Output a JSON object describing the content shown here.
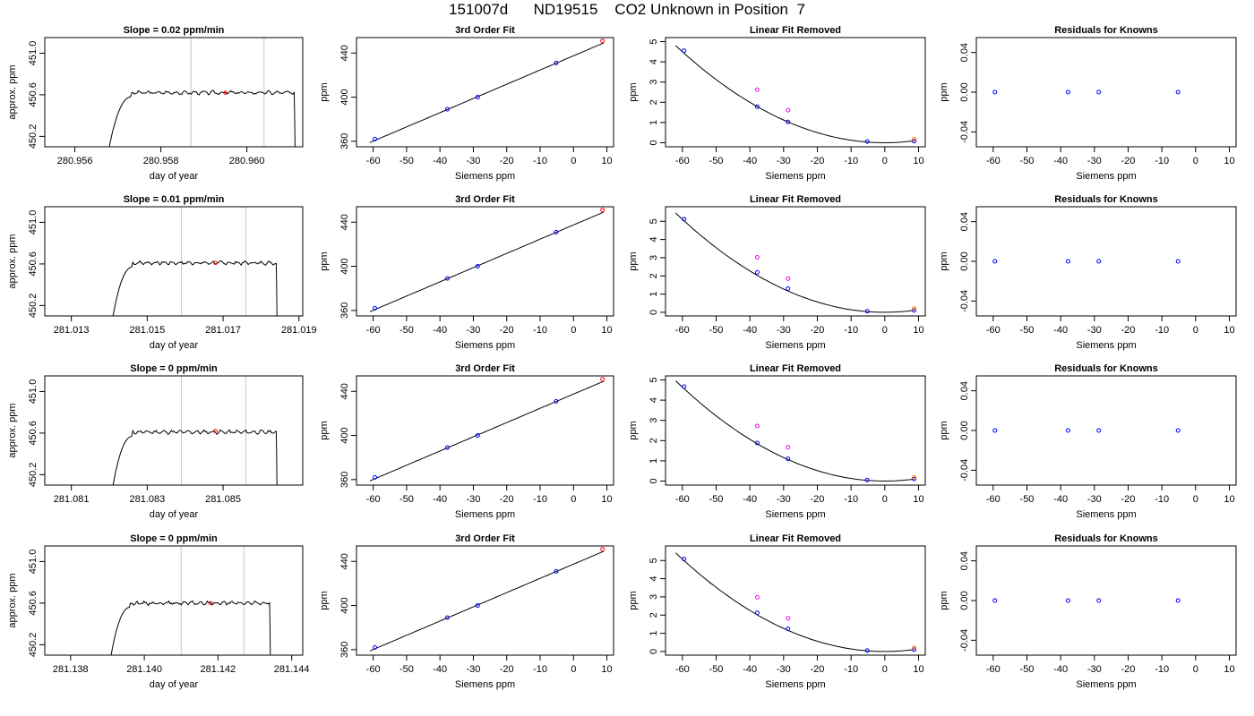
{
  "page": {
    "title": "151007d      ND19515    CO2 Unknown in Position  7"
  },
  "chart_data": [
    {
      "type": "line",
      "title": "Slope =  0.02  ppm/min",
      "xlabel": "day of year",
      "ylabel": "approx. ppm",
      "xlim": [
        280.9553,
        280.9613
      ],
      "ylim": [
        450.1,
        451.15
      ],
      "xticks": [
        280.956,
        280.958,
        280.96
      ],
      "xticklabels": [
        "280.956",
        "280.958",
        "280.960"
      ],
      "yticks": [
        450.2,
        450.6,
        451.0
      ],
      "yticklabels": [
        "450.2",
        "450.6",
        "451.0"
      ],
      "vlines": [
        280.9587,
        280.9604
      ],
      "curve": {
        "start": 280.9568,
        "end": 280.9611,
        "level": 450.62,
        "bottom": 450.1
      },
      "highlight_point": {
        "x": 280.9595,
        "y": 450.62,
        "color": "#ff0000"
      }
    },
    {
      "type": "scatter",
      "title": "3rd Order Fit",
      "xlabel": "Siemens ppm",
      "ylabel": "ppm",
      "xlim": [
        -65,
        12
      ],
      "ylim": [
        355,
        454
      ],
      "xticks": [
        -60,
        -50,
        -40,
        -30,
        -20,
        -10,
        0,
        10
      ],
      "xticklabels": [
        "-60",
        "-50",
        "-40",
        "-30",
        "-20",
        "-10",
        "0",
        "10"
      ],
      "yticks": [
        360,
        400,
        440
      ],
      "yticklabels": [
        "360",
        "400",
        "440"
      ],
      "points": [
        {
          "x": -59.5,
          "y": 362,
          "color": "#0000ff"
        },
        {
          "x": -37.8,
          "y": 389,
          "color": "#0000ff"
        },
        {
          "x": -28.7,
          "y": 400,
          "color": "#0000ff"
        },
        {
          "x": -5.2,
          "y": 431,
          "color": "#0000ff"
        },
        {
          "x": 8.7,
          "y": 451,
          "color": "#ff0000"
        }
      ],
      "fit": {
        "kind": "linear",
        "a": 437.5,
        "b": 1.29,
        "xrange": [
          -61,
          9
        ]
      }
    },
    {
      "type": "scatter",
      "title": "Linear Fit Removed",
      "xlabel": "Siemens ppm",
      "ylabel": "ppm",
      "xlim": [
        -65,
        12
      ],
      "ylim": [
        -0.2,
        5.2
      ],
      "xticks": [
        -60,
        -50,
        -40,
        -30,
        -20,
        -10,
        0,
        10
      ],
      "xticklabels": [
        "-60",
        "-50",
        "-40",
        "-30",
        "-20",
        "-10",
        "0",
        "10"
      ],
      "yticks": [
        0,
        1,
        2,
        3,
        4,
        5
      ],
      "yticklabels": [
        "0",
        "1",
        "2",
        "3",
        "4",
        "5"
      ],
      "points": [
        {
          "x": -59.5,
          "y": 4.55,
          "color": "#0000ff"
        },
        {
          "x": -37.8,
          "y": 1.78,
          "color": "#0000ff"
        },
        {
          "x": -28.7,
          "y": 1.03,
          "color": "#0000ff"
        },
        {
          "x": -5.2,
          "y": 0.06,
          "color": "#0000ff"
        },
        {
          "x": 8.7,
          "y": 0.08,
          "color": "#0000ff"
        },
        {
          "x": -37.8,
          "y": 2.62,
          "color": "#ff00ff"
        },
        {
          "x": -28.7,
          "y": 1.61,
          "color": "#ff00ff"
        },
        {
          "x": 8.7,
          "y": 0.18,
          "color": "#ff8000"
        }
      ],
      "fit": {
        "kind": "quadratic",
        "a": 0.00125,
        "b": 0.0,
        "c": 0.0,
        "xrange": [
          -62,
          9
        ]
      }
    },
    {
      "type": "scatter",
      "title": "Residuals for Knowns",
      "xlabel": "Siemens ppm",
      "ylabel": "ppm",
      "xlim": [
        -65,
        12
      ],
      "ylim": [
        -0.055,
        0.055
      ],
      "xticks": [
        -60,
        -50,
        -40,
        -30,
        -20,
        -10,
        0,
        10
      ],
      "xticklabels": [
        "-60",
        "-50",
        "-40",
        "-30",
        "-20",
        "-10",
        "0",
        "10"
      ],
      "yticks": [
        -0.04,
        0,
        0.04
      ],
      "yticklabels": [
        "-0.04",
        "0.00",
        "0.04"
      ],
      "points": [
        {
          "x": -59.5,
          "y": 0,
          "color": "#0000ff"
        },
        {
          "x": -37.8,
          "y": 0,
          "color": "#0000ff"
        },
        {
          "x": -28.7,
          "y": 0,
          "color": "#0000ff"
        },
        {
          "x": -5.2,
          "y": 0,
          "color": "#0000ff"
        }
      ]
    },
    {
      "type": "line",
      "title": "Slope =  0.01  ppm/min",
      "xlabel": "day of year",
      "ylabel": "approx. ppm",
      "xlim": [
        281.0123,
        281.0191
      ],
      "ylim": [
        450.1,
        451.15
      ],
      "xticks": [
        281.013,
        281.015,
        281.017,
        281.019
      ],
      "xticklabels": [
        "281.013",
        "281.015",
        "281.017",
        "281.019"
      ],
      "yticks": [
        450.2,
        450.6,
        451.0
      ],
      "yticklabels": [
        "450.2",
        "450.6",
        "451.0"
      ],
      "vlines": [
        281.0159,
        281.0176
      ],
      "curve": {
        "start": 281.0141,
        "end": 281.0184,
        "level": 450.61,
        "bottom": 450.1
      },
      "highlight_point": {
        "x": 281.0168,
        "y": 450.61,
        "color": "#ff0000"
      }
    },
    {
      "type": "scatter",
      "title": "3rd Order Fit",
      "xlabel": "Siemens ppm",
      "ylabel": "ppm",
      "xlim": [
        -65,
        12
      ],
      "ylim": [
        355,
        454
      ],
      "xticks": [
        -60,
        -50,
        -40,
        -30,
        -20,
        -10,
        0,
        10
      ],
      "xticklabels": [
        "-60",
        "-50",
        "-40",
        "-30",
        "-20",
        "-10",
        "0",
        "10"
      ],
      "yticks": [
        360,
        400,
        440
      ],
      "yticklabels": [
        "360",
        "400",
        "440"
      ],
      "points": [
        {
          "x": -59.5,
          "y": 362,
          "color": "#0000ff"
        },
        {
          "x": -37.8,
          "y": 389,
          "color": "#0000ff"
        },
        {
          "x": -28.7,
          "y": 400,
          "color": "#0000ff"
        },
        {
          "x": -5.2,
          "y": 431,
          "color": "#0000ff"
        },
        {
          "x": 8.7,
          "y": 451,
          "color": "#ff0000"
        }
      ],
      "fit": {
        "kind": "linear",
        "a": 437.5,
        "b": 1.29,
        "xrange": [
          -61,
          9
        ]
      }
    },
    {
      "type": "scatter",
      "title": "Linear Fit Removed",
      "xlabel": "Siemens ppm",
      "ylabel": "ppm",
      "xlim": [
        -65,
        12
      ],
      "ylim": [
        -0.2,
        5.8
      ],
      "xticks": [
        -60,
        -50,
        -40,
        -30,
        -20,
        -10,
        0,
        10
      ],
      "xticklabels": [
        "-60",
        "-50",
        "-40",
        "-30",
        "-20",
        "-10",
        "0",
        "10"
      ],
      "yticks": [
        0,
        1,
        2,
        3,
        4,
        5
      ],
      "yticklabels": [
        "0",
        "1",
        "2",
        "3",
        "4",
        "5"
      ],
      "points": [
        {
          "x": -59.5,
          "y": 5.12,
          "color": "#0000ff"
        },
        {
          "x": -37.8,
          "y": 2.19,
          "color": "#0000ff"
        },
        {
          "x": -28.7,
          "y": 1.3,
          "color": "#0000ff"
        },
        {
          "x": -5.2,
          "y": 0.06,
          "color": "#0000ff"
        },
        {
          "x": 8.7,
          "y": 0.1,
          "color": "#0000ff"
        },
        {
          "x": -37.8,
          "y": 3.02,
          "color": "#ff00ff"
        },
        {
          "x": -28.7,
          "y": 1.85,
          "color": "#ff00ff"
        },
        {
          "x": 8.7,
          "y": 0.2,
          "color": "#ff8000"
        }
      ],
      "fit": {
        "kind": "quadratic",
        "a": 0.00142,
        "b": 0.0,
        "c": 0.0,
        "xrange": [
          -62,
          9
        ]
      }
    },
    {
      "type": "scatter",
      "title": "Residuals for Knowns",
      "xlabel": "Siemens ppm",
      "ylabel": "ppm",
      "xlim": [
        -65,
        12
      ],
      "ylim": [
        -0.055,
        0.055
      ],
      "xticks": [
        -60,
        -50,
        -40,
        -30,
        -20,
        -10,
        0,
        10
      ],
      "xticklabels": [
        "-60",
        "-50",
        "-40",
        "-30",
        "-20",
        "-10",
        "0",
        "10"
      ],
      "yticks": [
        -0.04,
        0,
        0.04
      ],
      "yticklabels": [
        "-0.04",
        "0.00",
        "0.04"
      ],
      "points": [
        {
          "x": -59.5,
          "y": 0,
          "color": "#0000ff"
        },
        {
          "x": -37.8,
          "y": 0,
          "color": "#0000ff"
        },
        {
          "x": -28.7,
          "y": 0,
          "color": "#0000ff"
        },
        {
          "x": -5.2,
          "y": 0,
          "color": "#0000ff"
        }
      ]
    },
    {
      "type": "line",
      "title": "Slope =  0  ppm/min",
      "xlabel": "day of year",
      "ylabel": "approx. ppm",
      "xlim": [
        281.0803,
        281.0871
      ],
      "ylim": [
        450.1,
        451.15
      ],
      "xticks": [
        281.081,
        281.083,
        281.085
      ],
      "xticklabels": [
        "281.081",
        "281.083",
        "281.085"
      ],
      "yticks": [
        450.2,
        450.6,
        451.0
      ],
      "yticklabels": [
        "450.2",
        "450.6",
        "451.0"
      ],
      "vlines": [
        281.0839,
        281.0856
      ],
      "curve": {
        "start": 281.0821,
        "end": 281.0864,
        "level": 450.61,
        "bottom": 450.1
      },
      "highlight_point": {
        "x": 281.0848,
        "y": 450.62,
        "color": "#ff0000"
      }
    },
    {
      "type": "scatter",
      "title": "3rd Order Fit",
      "xlabel": "Siemens ppm",
      "ylabel": "ppm",
      "xlim": [
        -65,
        12
      ],
      "ylim": [
        355,
        454
      ],
      "xticks": [
        -60,
        -50,
        -40,
        -30,
        -20,
        -10,
        0,
        10
      ],
      "xticklabels": [
        "-60",
        "-50",
        "-40",
        "-30",
        "-20",
        "-10",
        "0",
        "10"
      ],
      "yticks": [
        360,
        400,
        440
      ],
      "yticklabels": [
        "360",
        "400",
        "440"
      ],
      "points": [
        {
          "x": -59.5,
          "y": 362,
          "color": "#0000ff"
        },
        {
          "x": -37.8,
          "y": 389,
          "color": "#0000ff"
        },
        {
          "x": -28.7,
          "y": 400,
          "color": "#0000ff"
        },
        {
          "x": -5.2,
          "y": 431,
          "color": "#0000ff"
        },
        {
          "x": 8.7,
          "y": 451,
          "color": "#ff0000"
        }
      ],
      "fit": {
        "kind": "linear",
        "a": 437.5,
        "b": 1.29,
        "xrange": [
          -61,
          9
        ]
      }
    },
    {
      "type": "scatter",
      "title": "Linear Fit Removed",
      "xlabel": "Siemens ppm",
      "ylabel": "ppm",
      "xlim": [
        -65,
        12
      ],
      "ylim": [
        -0.2,
        5.2
      ],
      "xticks": [
        -60,
        -50,
        -40,
        -30,
        -20,
        -10,
        0,
        10
      ],
      "xticklabels": [
        "-60",
        "-50",
        "-40",
        "-30",
        "-20",
        "-10",
        "0",
        "10"
      ],
      "yticks": [
        0,
        1,
        2,
        3,
        4,
        5
      ],
      "yticklabels": [
        "0",
        "1",
        "2",
        "3",
        "4",
        "5"
      ],
      "points": [
        {
          "x": -59.5,
          "y": 4.67,
          "color": "#0000ff"
        },
        {
          "x": -37.8,
          "y": 1.88,
          "color": "#0000ff"
        },
        {
          "x": -28.7,
          "y": 1.1,
          "color": "#0000ff"
        },
        {
          "x": -5.2,
          "y": 0.05,
          "color": "#0000ff"
        },
        {
          "x": 8.7,
          "y": 0.1,
          "color": "#0000ff"
        },
        {
          "x": -37.8,
          "y": 2.72,
          "color": "#ff00ff"
        },
        {
          "x": -28.7,
          "y": 1.67,
          "color": "#ff00ff"
        },
        {
          "x": 8.7,
          "y": 0.18,
          "color": "#ff8000"
        }
      ],
      "fit": {
        "kind": "quadratic",
        "a": 0.00129,
        "b": 0.0,
        "c": 0.0,
        "xrange": [
          -62,
          9
        ]
      }
    },
    {
      "type": "scatter",
      "title": "Residuals for Knowns",
      "xlabel": "Siemens ppm",
      "ylabel": "ppm",
      "xlim": [
        -65,
        12
      ],
      "ylim": [
        -0.055,
        0.055
      ],
      "xticks": [
        -60,
        -50,
        -40,
        -30,
        -20,
        -10,
        0,
        10
      ],
      "xticklabels": [
        "-60",
        "-50",
        "-40",
        "-30",
        "-20",
        "-10",
        "0",
        "10"
      ],
      "yticks": [
        -0.04,
        0,
        0.04
      ],
      "yticklabels": [
        "-0.04",
        "0.00",
        "0.04"
      ],
      "points": [
        {
          "x": -59.5,
          "y": 0,
          "color": "#0000ff"
        },
        {
          "x": -37.8,
          "y": 0,
          "color": "#0000ff"
        },
        {
          "x": -28.7,
          "y": 0,
          "color": "#0000ff"
        },
        {
          "x": -5.2,
          "y": 0,
          "color": "#0000ff"
        }
      ]
    },
    {
      "type": "line",
      "title": "Slope =  0  ppm/min",
      "xlabel": "day of year",
      "ylabel": "approx. ppm",
      "xlim": [
        281.1373,
        281.1443
      ],
      "ylim": [
        450.1,
        451.15
      ],
      "xticks": [
        281.138,
        281.14,
        281.142,
        281.144
      ],
      "xticklabels": [
        "281.138",
        "281.140",
        "281.142",
        "281.144"
      ],
      "yticks": [
        450.2,
        450.6,
        451.0
      ],
      "yticklabels": [
        "450.2",
        "450.6",
        "451.0"
      ],
      "vlines": [
        281.141,
        281.1427
      ],
      "curve": {
        "start": 281.1391,
        "end": 281.1434,
        "level": 450.6,
        "bottom": 450.1
      },
      "highlight_point": {
        "x": 281.1418,
        "y": 450.6,
        "color": "#ff0000"
      }
    },
    {
      "type": "scatter",
      "title": "3rd Order Fit",
      "xlabel": "Siemens ppm",
      "ylabel": "ppm",
      "xlim": [
        -65,
        12
      ],
      "ylim": [
        355,
        454
      ],
      "xticks": [
        -60,
        -50,
        -40,
        -30,
        -20,
        -10,
        0,
        10
      ],
      "xticklabels": [
        "-60",
        "-50",
        "-40",
        "-30",
        "-20",
        "-10",
        "0",
        "10"
      ],
      "yticks": [
        360,
        400,
        440
      ],
      "yticklabels": [
        "360",
        "400",
        "440"
      ],
      "points": [
        {
          "x": -59.5,
          "y": 362,
          "color": "#0000ff"
        },
        {
          "x": -37.8,
          "y": 389,
          "color": "#0000ff"
        },
        {
          "x": -28.7,
          "y": 400,
          "color": "#0000ff"
        },
        {
          "x": -5.2,
          "y": 431,
          "color": "#0000ff"
        },
        {
          "x": 8.7,
          "y": 451,
          "color": "#ff0000"
        }
      ],
      "fit": {
        "kind": "linear",
        "a": 437.5,
        "b": 1.29,
        "xrange": [
          -61,
          9
        ]
      }
    },
    {
      "type": "scatter",
      "title": "Linear Fit Removed",
      "xlabel": "Siemens ppm",
      "ylabel": "ppm",
      "xlim": [
        -65,
        12
      ],
      "ylim": [
        -0.2,
        5.8
      ],
      "xticks": [
        -60,
        -50,
        -40,
        -30,
        -20,
        -10,
        0,
        10
      ],
      "xticklabels": [
        "-60",
        "-50",
        "-40",
        "-30",
        "-20",
        "-10",
        "0",
        "10"
      ],
      "yticks": [
        0,
        1,
        2,
        3,
        4,
        5
      ],
      "yticklabels": [
        "0",
        "1",
        "2",
        "3",
        "4",
        "5"
      ],
      "points": [
        {
          "x": -59.5,
          "y": 5.08,
          "color": "#0000ff"
        },
        {
          "x": -37.8,
          "y": 2.13,
          "color": "#0000ff"
        },
        {
          "x": -28.7,
          "y": 1.25,
          "color": "#0000ff"
        },
        {
          "x": -5.2,
          "y": 0.05,
          "color": "#0000ff"
        },
        {
          "x": 8.7,
          "y": 0.1,
          "color": "#0000ff"
        },
        {
          "x": -37.8,
          "y": 2.98,
          "color": "#ff00ff"
        },
        {
          "x": -28.7,
          "y": 1.82,
          "color": "#ff00ff"
        },
        {
          "x": 8.7,
          "y": 0.2,
          "color": "#ff8000"
        }
      ],
      "fit": {
        "kind": "quadratic",
        "a": 0.00141,
        "b": 0.0,
        "c": 0.0,
        "xrange": [
          -62,
          9
        ]
      }
    },
    {
      "type": "scatter",
      "title": "Residuals for Knowns",
      "xlabel": "Siemens ppm",
      "ylabel": "ppm",
      "xlim": [
        -65,
        12
      ],
      "ylim": [
        -0.055,
        0.055
      ],
      "xticks": [
        -60,
        -50,
        -40,
        -30,
        -20,
        -10,
        0,
        10
      ],
      "xticklabels": [
        "-60",
        "-50",
        "-40",
        "-30",
        "-20",
        "-10",
        "0",
        "10"
      ],
      "yticks": [
        -0.04,
        0,
        0.04
      ],
      "yticklabels": [
        "-0.04",
        "0.00",
        "0.04"
      ],
      "points": [
        {
          "x": -59.5,
          "y": 0,
          "color": "#0000ff"
        },
        {
          "x": -37.8,
          "y": 0,
          "color": "#0000ff"
        },
        {
          "x": -28.7,
          "y": 0,
          "color": "#0000ff"
        },
        {
          "x": -5.2,
          "y": 0,
          "color": "#0000ff"
        }
      ]
    }
  ]
}
